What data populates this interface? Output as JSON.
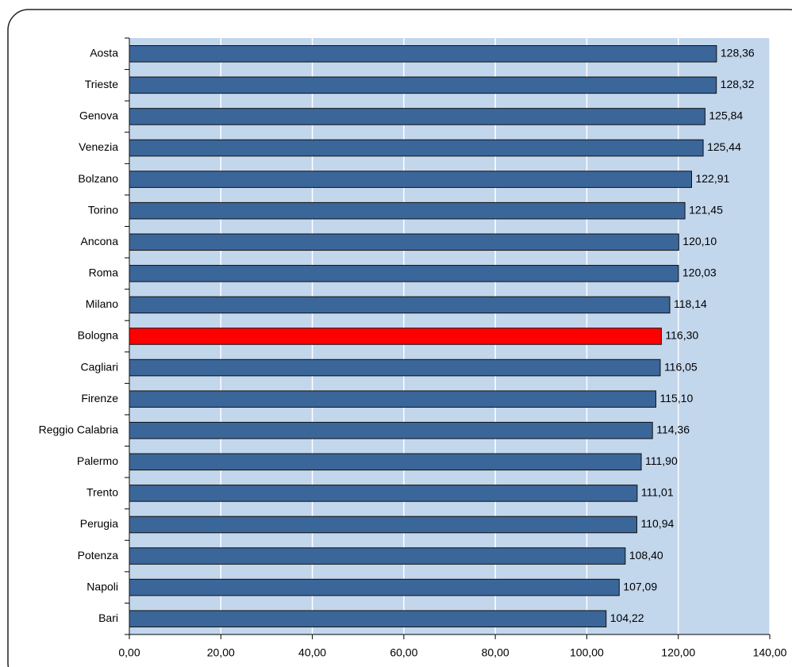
{
  "chart_data": {
    "type": "hbar",
    "categories": [
      "Aosta",
      "Trieste",
      "Genova",
      "Venezia",
      "Bolzano",
      "Torino",
      "Ancona",
      "Roma",
      "Milano",
      "Bologna",
      "Cagliari",
      "Firenze",
      "Reggio Calabria",
      "Palermo",
      "Trento",
      "Perugia",
      "Potenza",
      "Napoli",
      "Bari"
    ],
    "values": [
      128.36,
      128.32,
      125.84,
      125.44,
      122.91,
      121.45,
      120.1,
      120.03,
      118.14,
      116.3,
      116.05,
      115.1,
      114.36,
      111.9,
      111.01,
      110.94,
      108.4,
      107.09,
      104.22
    ],
    "value_labels": [
      "128,36",
      "128,32",
      "125,84",
      "125,44",
      "122,91",
      "121,45",
      "120,10",
      "120,03",
      "118,14",
      "116,30",
      "116,05",
      "115,10",
      "114,36",
      "111,90",
      "111,01",
      "110,94",
      "108,40",
      "107,09",
      "104,22"
    ],
    "colors": [
      "#3b6699",
      "#3b6699",
      "#3b6699",
      "#3b6699",
      "#3b6699",
      "#3b6699",
      "#3b6699",
      "#3b6699",
      "#3b6699",
      "#ff0000",
      "#3b6699",
      "#3b6699",
      "#3b6699",
      "#3b6699",
      "#3b6699",
      "#3b6699",
      "#3b6699",
      "#3b6699",
      "#3b6699"
    ],
    "xlim": [
      0,
      140
    ],
    "xticks": [
      {
        "value": 0,
        "label": "0,00"
      },
      {
        "value": 20,
        "label": "20,00"
      },
      {
        "value": 40,
        "label": "40,00"
      },
      {
        "value": 60,
        "label": "60,00"
      },
      {
        "value": 80,
        "label": "80,00"
      },
      {
        "value": 100,
        "label": "100,00"
      },
      {
        "value": 120,
        "label": "120,00"
      },
      {
        "value": 140,
        "label": "140,00"
      }
    ],
    "grid": true
  }
}
